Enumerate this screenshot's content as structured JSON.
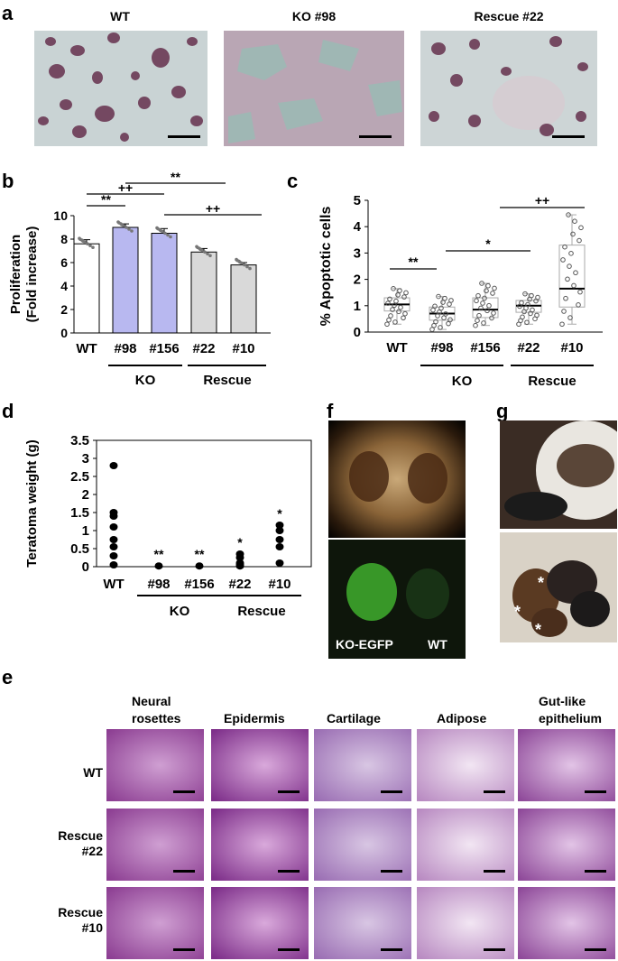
{
  "panels": {
    "a": "a",
    "b": "b",
    "c": "c",
    "d": "d",
    "e": "e",
    "f": "f",
    "g": "g"
  },
  "panel_a": {
    "titles": [
      "WT",
      "KO #98",
      "Rescue #22"
    ]
  },
  "chart_data": [
    {
      "panel": "b",
      "type": "bar",
      "ylabel_line1": "Proliferation",
      "ylabel_line2": "(Fold increase)",
      "ylim": [
        0,
        10
      ],
      "yticks": [
        "0",
        "2",
        "4",
        "6",
        "8",
        "10"
      ],
      "categories": [
        "WT",
        "#98",
        "#156",
        "#22",
        "#10"
      ],
      "values": [
        7.6,
        9.0,
        8.5,
        6.9,
        5.8
      ],
      "errors": [
        0.35,
        0.3,
        0.4,
        0.3,
        0.2
      ],
      "bar_colors": [
        "#ffffff",
        "#b8b8f0",
        "#b8b8f0",
        "#d9d9d9",
        "#d9d9d9"
      ],
      "groups": [
        "KO",
        "Rescue"
      ],
      "significance": [
        "**",
        "++",
        "**",
        "++"
      ]
    },
    {
      "panel": "c",
      "type": "box",
      "ylabel": "% Apoptotic cells",
      "ylim": [
        0,
        5
      ],
      "yticks": [
        "0",
        "1",
        "2",
        "3",
        "4",
        "5"
      ],
      "categories": [
        "WT",
        "#98",
        "#156",
        "#22",
        "#10"
      ],
      "boxes": [
        {
          "min": 0.3,
          "q1": 0.8,
          "median": 1.05,
          "q3": 1.3,
          "max": 1.65
        },
        {
          "min": 0.1,
          "q1": 0.45,
          "median": 0.7,
          "q3": 0.95,
          "max": 1.35
        },
        {
          "min": 0.25,
          "q1": 0.55,
          "median": 0.85,
          "q3": 1.3,
          "max": 1.85
        },
        {
          "min": 0.3,
          "q1": 0.75,
          "median": 1.0,
          "q3": 1.2,
          "max": 1.45
        },
        {
          "min": 0.3,
          "q1": 0.95,
          "median": 1.65,
          "q3": 3.3,
          "max": 4.45
        }
      ],
      "groups": [
        "KO",
        "Rescue"
      ],
      "significance": [
        "**",
        "*",
        "++"
      ]
    },
    {
      "panel": "d",
      "type": "scatter",
      "ylabel": "Teratoma weight (g)",
      "ylim": [
        0,
        3.5
      ],
      "yticks": [
        "0",
        "0.5",
        "1",
        "1.5",
        "2",
        "2.5",
        "3",
        "3.5"
      ],
      "categories": [
        "WT",
        "#98",
        "#156",
        "#22",
        "#10"
      ],
      "points": [
        [
          2.8,
          1.5,
          1.4,
          1.1,
          0.75,
          0.55,
          0.3,
          0.05
        ],
        [
          0.02
        ],
        [
          0.02
        ],
        [
          0.35,
          0.25,
          0.1,
          0.05,
          0.02
        ],
        [
          1.15,
          1.0,
          0.75,
          0.55,
          0.1
        ]
      ],
      "groups": [
        "KO",
        "Rescue"
      ],
      "significance": [
        "",
        "**",
        "**",
        "*",
        "*"
      ]
    }
  ],
  "panel_e": {
    "columns": [
      [
        "Neural",
        "rosettes"
      ],
      [
        "Epidermis"
      ],
      [
        "Cartilage"
      ],
      [
        "Adipose"
      ],
      [
        "Gut-like",
        "epithelium"
      ]
    ],
    "rows": [
      [
        "WT"
      ],
      [
        "Rescue",
        "#22"
      ],
      [
        "Rescue",
        "#10"
      ]
    ]
  },
  "panel_f": {
    "label_left": "KO-EGFP",
    "label_right": "WT"
  },
  "panel_g": {
    "marks": [
      "*",
      "*",
      "*"
    ]
  }
}
